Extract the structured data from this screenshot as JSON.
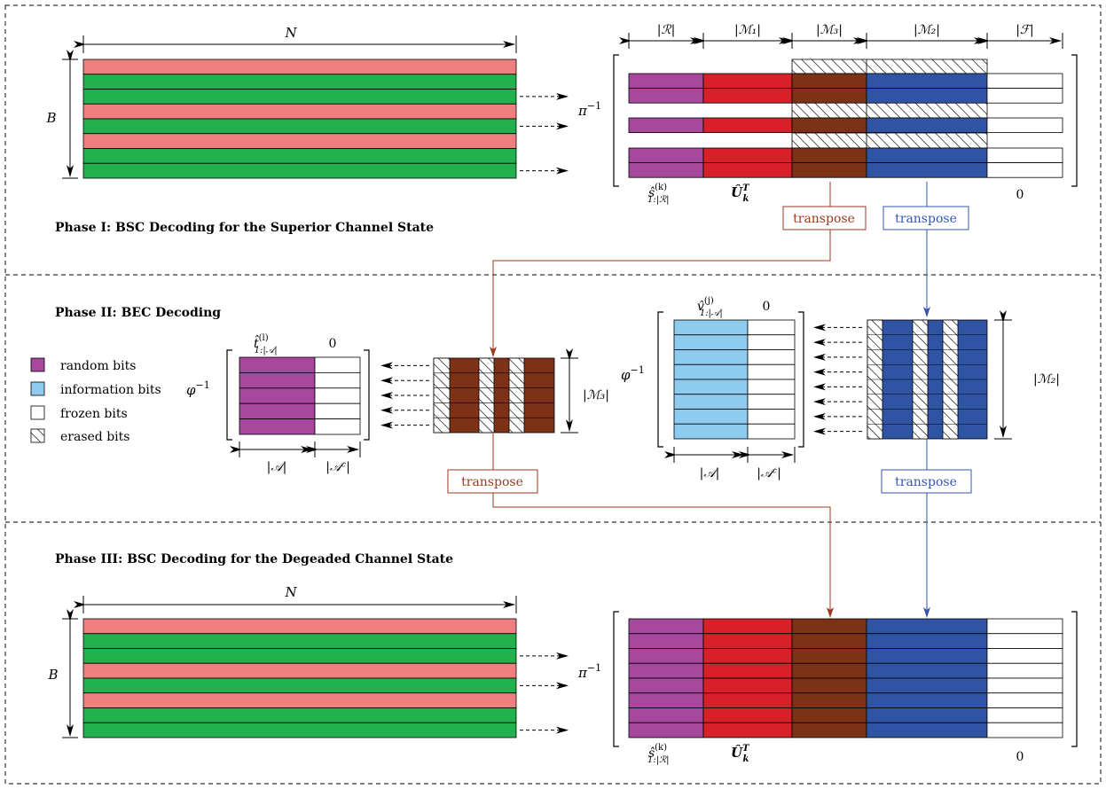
{
  "colors": {
    "pink": "#F08080",
    "green": "#22B14C",
    "purple": "#A7479E",
    "red": "#D72027",
    "brown": "#7D3216",
    "blue": "#2F54A3",
    "lightblue": "#8ECBEF",
    "transpose_brown": "#9B3A1E",
    "transpose_blue": "#3556B0"
  },
  "phase1": {
    "title": "Phase I: BSC Decoding for the Superior Channel State",
    "N_label": "N",
    "B_label": "B",
    "pi_label": "π⁻¹",
    "rows": [
      "pink",
      "green",
      "green",
      "pink",
      "green",
      "pink",
      "green",
      "green"
    ],
    "col_labels": [
      "|ℛ|",
      "|ℳ₁|",
      "|ℳ₃|",
      "|ℳ₂|",
      "|ℱ|"
    ],
    "s_label": "ŝ",
    "s_sup": "(k)",
    "s_sub": "1:|ℛ|",
    "u_label": "Û",
    "u_sup": "T",
    "u_sub": "k",
    "zero_label": "0",
    "transpose_left": "transpose",
    "transpose_right": "transpose"
  },
  "phase2": {
    "title": "Phase II: BEC Decoding",
    "legend": [
      {
        "label": "random bits",
        "type": "purple"
      },
      {
        "label": "information bits",
        "type": "lightblue"
      },
      {
        "label": "frozen bits",
        "type": "white"
      },
      {
        "label": "erased bits",
        "type": "hatch"
      }
    ],
    "left_phi": "φ⁻¹",
    "right_phi": "φ⁻¹",
    "t_label": "t̂",
    "t_sup": "(l)",
    "t_sub": "1:|𝒜|",
    "v_label": "v̂",
    "v_sup": "(j)",
    "v_sub": "1:|𝒜|",
    "zero_left": "0",
    "zero_right": "0",
    "A_label": "|𝒜|",
    "Ac_label": "|𝒜ᶜ|",
    "M3_label": "|ℳ₃|",
    "M2_label": "|ℳ₂|",
    "transpose_left": "transpose",
    "transpose_right": "transpose"
  },
  "phase3": {
    "title": "Phase III: BSC Decoding for the Degeaded Channel State",
    "N_label": "N",
    "B_label": "B",
    "pi_label": "π⁻¹",
    "rows": [
      "pink",
      "green",
      "green",
      "pink",
      "green",
      "pink",
      "green",
      "green"
    ],
    "s_label": "ŝ",
    "s_sup": "(k)",
    "s_sub": "1:|ℛ|",
    "u_label": "Û",
    "u_sup": "T",
    "u_sub": "k",
    "zero_label": "0"
  }
}
